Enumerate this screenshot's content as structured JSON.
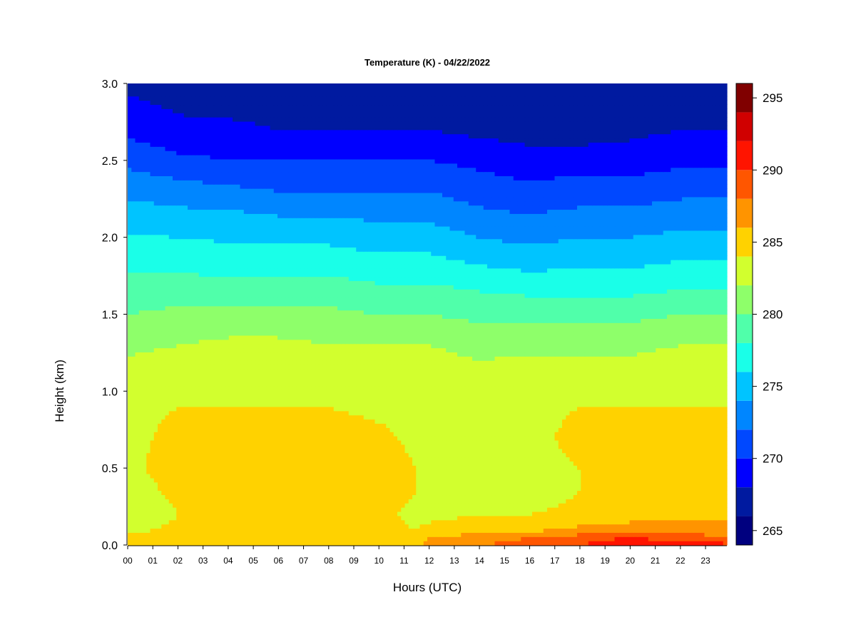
{
  "chart_data": {
    "type": "heatmap",
    "title": "Temperature (K) - 04/22/2022",
    "xlabel": "Hours (UTC)",
    "ylabel": "Height (km)",
    "xlim": [
      0,
      23.85
    ],
    "ylim": [
      0,
      3.0
    ],
    "x_ticks": [
      "00",
      "01",
      "02",
      "03",
      "04",
      "05",
      "06",
      "07",
      "08",
      "09",
      "10",
      "11",
      "12",
      "13",
      "14",
      "15",
      "16",
      "17",
      "18",
      "19",
      "20",
      "21",
      "22",
      "23"
    ],
    "y_ticks": [
      "0.0",
      "0.5",
      "1.0",
      "1.5",
      "2.0",
      "2.5",
      "3.0"
    ],
    "colorbar": {
      "label": "",
      "range": [
        264,
        296
      ],
      "ticks": [
        "265",
        "270",
        "275",
        "280",
        "285",
        "290",
        "295"
      ],
      "levels": [
        264,
        266,
        268,
        270,
        272,
        274,
        276,
        278,
        280,
        282,
        284,
        286,
        288,
        290,
        292,
        294,
        296
      ],
      "colors": [
        "#00007F",
        "#001AA0",
        "#0000FF",
        "#0048FF",
        "#0086FF",
        "#00C4FF",
        "#1AFFE8",
        "#50FFAA",
        "#8EFF6A",
        "#D2FF2E",
        "#FFD200",
        "#FF9400",
        "#FF5600",
        "#FF1400",
        "#D00000",
        "#800000"
      ]
    },
    "grid": false,
    "height_km": [
      0.0,
      0.05,
      0.1,
      0.2,
      0.35,
      0.5,
      0.7,
      0.9,
      1.1,
      1.3,
      1.5,
      1.7,
      1.9,
      2.1,
      2.3,
      2.5,
      2.7,
      3.0
    ],
    "hours": [
      0,
      2,
      4,
      6,
      8,
      10,
      11.5,
      12,
      14,
      16,
      18,
      20,
      22,
      23.85
    ],
    "temperature_K": [
      [
        285.0,
        285.5,
        285.5,
        285.5,
        285.5,
        285.5,
        285.0,
        287.0,
        288.0,
        289.0,
        290.0,
        292.0,
        291.0,
        290.5
      ],
      [
        284.5,
        285.0,
        285.0,
        285.0,
        285.0,
        285.0,
        284.5,
        286.0,
        287.0,
        288.0,
        289.0,
        290.0,
        289.0,
        288.5
      ],
      [
        283.5,
        284.5,
        284.5,
        285.0,
        284.5,
        284.5,
        284.0,
        284.5,
        285.0,
        285.5,
        286.5,
        287.0,
        287.0,
        286.5
      ],
      [
        282.0,
        284.0,
        284.5,
        284.5,
        284.5,
        284.5,
        283.5,
        283.5,
        284.0,
        284.0,
        284.5,
        285.0,
        285.5,
        285.5
      ],
      [
        283.0,
        284.5,
        285.0,
        285.0,
        285.0,
        285.0,
        284.0,
        283.0,
        282.5,
        283.0,
        284.0,
        284.5,
        285.0,
        285.0
      ],
      [
        283.5,
        285.0,
        285.0,
        285.0,
        285.0,
        285.0,
        284.0,
        283.0,
        282.5,
        283.5,
        284.0,
        284.5,
        285.0,
        285.0
      ],
      [
        283.5,
        284.5,
        285.0,
        285.0,
        285.0,
        284.5,
        283.5,
        283.5,
        283.5,
        283.5,
        284.5,
        284.5,
        284.5,
        284.5
      ],
      [
        283.5,
        284.0,
        284.0,
        284.0,
        284.0,
        283.5,
        283.0,
        283.0,
        283.0,
        283.5,
        284.0,
        284.0,
        284.0,
        284.0
      ],
      [
        283.0,
        283.5,
        283.5,
        283.5,
        283.5,
        283.5,
        283.0,
        283.0,
        282.5,
        283.0,
        283.0,
        283.0,
        283.5,
        283.5
      ],
      [
        281.5,
        282.0,
        282.5,
        282.5,
        282.0,
        282.0,
        282.0,
        282.0,
        281.5,
        281.5,
        281.5,
        281.5,
        282.0,
        282.0
      ],
      [
        280.0,
        280.5,
        280.5,
        280.5,
        280.5,
        280.0,
        280.0,
        280.0,
        279.5,
        279.5,
        279.5,
        279.5,
        280.0,
        280.0
      ],
      [
        278.5,
        278.5,
        278.5,
        278.5,
        278.5,
        278.0,
        278.0,
        278.0,
        277.5,
        277.0,
        277.0,
        277.0,
        277.5,
        277.5
      ],
      [
        277.0,
        277.0,
        276.5,
        276.5,
        276.5,
        276.0,
        276.0,
        276.0,
        275.0,
        274.5,
        275.0,
        275.0,
        275.5,
        275.5
      ],
      [
        275.5,
        275.0,
        275.0,
        274.5,
        274.5,
        274.0,
        274.0,
        274.0,
        273.0,
        272.5,
        273.0,
        273.0,
        273.5,
        273.5
      ],
      [
        273.5,
        273.0,
        272.5,
        272.0,
        272.0,
        272.0,
        272.0,
        272.0,
        271.0,
        270.5,
        271.0,
        271.0,
        271.5,
        271.5
      ],
      [
        271.5,
        270.5,
        270.0,
        270.0,
        270.0,
        270.0,
        270.0,
        270.0,
        269.5,
        269.0,
        269.0,
        269.0,
        269.5,
        269.5
      ],
      [
        269.5,
        268.5,
        268.5,
        268.0,
        268.0,
        268.0,
        268.0,
        268.0,
        267.5,
        267.0,
        267.0,
        267.5,
        268.0,
        268.0
      ],
      [
        267.5,
        267.0,
        266.5,
        266.5,
        266.5,
        266.5,
        266.5,
        266.5,
        266.0,
        266.0,
        266.0,
        266.0,
        266.5,
        266.5
      ]
    ]
  }
}
